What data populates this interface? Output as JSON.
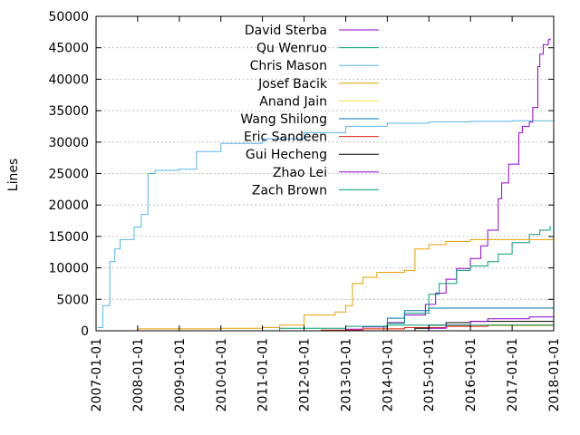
{
  "chart_data": {
    "type": "line",
    "title": "",
    "xlabel": "",
    "ylabel": "Lines",
    "xlim": [
      "2007-01-01",
      "2018-01-01"
    ],
    "ylim": [
      0,
      50000
    ],
    "x_ticks": [
      "2007-01-01",
      "2008-01-01",
      "2009-01-01",
      "2010-01-01",
      "2011-01-01",
      "2012-01-01",
      "2013-01-01",
      "2014-01-01",
      "2015-01-01",
      "2016-01-01",
      "2017-01-01",
      "2018-01-01"
    ],
    "y_ticks": [
      0,
      5000,
      10000,
      15000,
      20000,
      25000,
      30000,
      35000,
      40000,
      45000,
      50000
    ],
    "grid": "horizontal dotted",
    "legend_position": "top-center",
    "series": [
      {
        "name": "David Sterba",
        "color": "#9400d3",
        "points": [
          [
            "2012-09-01",
            0
          ],
          [
            "2013-01-01",
            250
          ],
          [
            "2013-06-01",
            600
          ],
          [
            "2014-01-01",
            1300
          ],
          [
            "2014-06-01",
            2500
          ],
          [
            "2014-12-01",
            4200
          ],
          [
            "2015-03-01",
            6000
          ],
          [
            "2015-06-01",
            8200
          ],
          [
            "2015-09-01",
            9900
          ],
          [
            "2016-01-01",
            11500
          ],
          [
            "2016-04-01",
            13500
          ],
          [
            "2016-06-01",
            16000
          ],
          [
            "2016-09-01",
            21000
          ],
          [
            "2016-10-01",
            23500
          ],
          [
            "2016-12-01",
            26500
          ],
          [
            "2017-03-01",
            31500
          ],
          [
            "2017-04-01",
            32500
          ],
          [
            "2017-06-01",
            33200
          ],
          [
            "2017-07-01",
            35500
          ],
          [
            "2017-08-15",
            42000
          ],
          [
            "2017-09-01",
            44000
          ],
          [
            "2017-10-01",
            45500
          ],
          [
            "2017-11-15",
            46300
          ],
          [
            "2017-12-01",
            46500
          ]
        ]
      },
      {
        "name": "Qu Wenruo",
        "color": "#009e73",
        "points": [
          [
            "2013-06-01",
            0
          ],
          [
            "2014-01-01",
            1200
          ],
          [
            "2014-06-01",
            2800
          ],
          [
            "2015-01-01",
            5800
          ],
          [
            "2015-04-01",
            7500
          ],
          [
            "2015-09-01",
            9600
          ],
          [
            "2016-01-01",
            10300
          ],
          [
            "2016-06-01",
            11000
          ],
          [
            "2016-09-01",
            12200
          ],
          [
            "2017-01-01",
            14000
          ],
          [
            "2017-06-01",
            15300
          ],
          [
            "2017-09-01",
            16000
          ],
          [
            "2017-12-01",
            16700
          ]
        ]
      },
      {
        "name": "Chris Mason",
        "color": "#56b4e9",
        "points": [
          [
            "2007-01-15",
            500
          ],
          [
            "2007-03-01",
            4000
          ],
          [
            "2007-05-01",
            11000
          ],
          [
            "2007-06-15",
            13000
          ],
          [
            "2007-08-01",
            14500
          ],
          [
            "2007-12-01",
            16500
          ],
          [
            "2008-02-01",
            18500
          ],
          [
            "2008-04-01",
            25000
          ],
          [
            "2008-06-01",
            25500
          ],
          [
            "2009-01-01",
            25700
          ],
          [
            "2009-06-01",
            28500
          ],
          [
            "2010-01-01",
            29800
          ],
          [
            "2011-01-01",
            30500
          ],
          [
            "2012-01-01",
            31500
          ],
          [
            "2013-01-01",
            32500
          ],
          [
            "2014-01-01",
            33000
          ],
          [
            "2015-01-01",
            33200
          ],
          [
            "2016-01-01",
            33300
          ],
          [
            "2017-01-01",
            33400
          ],
          [
            "2018-01-01",
            33400
          ]
        ]
      },
      {
        "name": "Josef Bacik",
        "color": "#e69f00",
        "points": [
          [
            "2007-06-01",
            0
          ],
          [
            "2008-01-01",
            300
          ],
          [
            "2010-01-01",
            400
          ],
          [
            "2011-01-01",
            500
          ],
          [
            "2011-06-01",
            900
          ],
          [
            "2012-01-01",
            2500
          ],
          [
            "2012-10-01",
            3000
          ],
          [
            "2013-01-01",
            4000
          ],
          [
            "2013-03-01",
            7500
          ],
          [
            "2013-06-01",
            8500
          ],
          [
            "2013-10-01",
            9300
          ],
          [
            "2014-06-01",
            9600
          ],
          [
            "2014-09-01",
            13000
          ],
          [
            "2015-01-01",
            13700
          ],
          [
            "2015-06-01",
            14200
          ],
          [
            "2016-01-01",
            14500
          ],
          [
            "2018-01-01",
            14600
          ]
        ]
      },
      {
        "name": "Anand Jain",
        "color": "#f0e442",
        "points": [
          [
            "2012-06-01",
            0
          ],
          [
            "2013-06-01",
            300
          ],
          [
            "2014-06-01",
            500
          ],
          [
            "2015-06-01",
            700
          ],
          [
            "2016-06-01",
            800
          ],
          [
            "2018-01-01",
            900
          ]
        ]
      },
      {
        "name": "Wang Shilong",
        "color": "#0072b2",
        "points": [
          [
            "2013-06-01",
            0
          ],
          [
            "2013-12-01",
            700
          ],
          [
            "2014-01-01",
            2000
          ],
          [
            "2014-06-01",
            3200
          ],
          [
            "2015-01-01",
            3600
          ],
          [
            "2018-01-01",
            3700
          ]
        ]
      },
      {
        "name": "Eric Sandeen",
        "color": "#e51e10",
        "points": [
          [
            "2011-06-01",
            0
          ],
          [
            "2012-06-01",
            100
          ],
          [
            "2013-06-01",
            300
          ],
          [
            "2014-06-01",
            500
          ],
          [
            "2015-06-01",
            700
          ],
          [
            "2016-06-01",
            900
          ],
          [
            "2018-01-01",
            1000
          ]
        ]
      },
      {
        "name": "Gui Hecheng",
        "color": "#000000",
        "points": [
          [
            "2014-01-01",
            0
          ],
          [
            "2014-09-01",
            400
          ],
          [
            "2015-01-01",
            900
          ],
          [
            "2015-06-01",
            1300
          ],
          [
            "2016-01-01",
            1500
          ],
          [
            "2018-01-01",
            1600
          ]
        ]
      },
      {
        "name": "Zhao Lei",
        "color": "#9400d3",
        "points": [
          [
            "2014-06-01",
            0
          ],
          [
            "2015-01-01",
            400
          ],
          [
            "2015-06-01",
            900
          ],
          [
            "2016-01-01",
            1500
          ],
          [
            "2016-06-01",
            1900
          ],
          [
            "2017-06-01",
            2200
          ],
          [
            "2018-01-01",
            2300
          ]
        ]
      },
      {
        "name": "Zach Brown",
        "color": "#009e73",
        "points": [
          [
            "2010-01-01",
            0
          ],
          [
            "2011-06-01",
            400
          ],
          [
            "2013-01-01",
            700
          ],
          [
            "2014-01-01",
            900
          ],
          [
            "2018-01-01",
            1000
          ]
        ]
      }
    ]
  }
}
